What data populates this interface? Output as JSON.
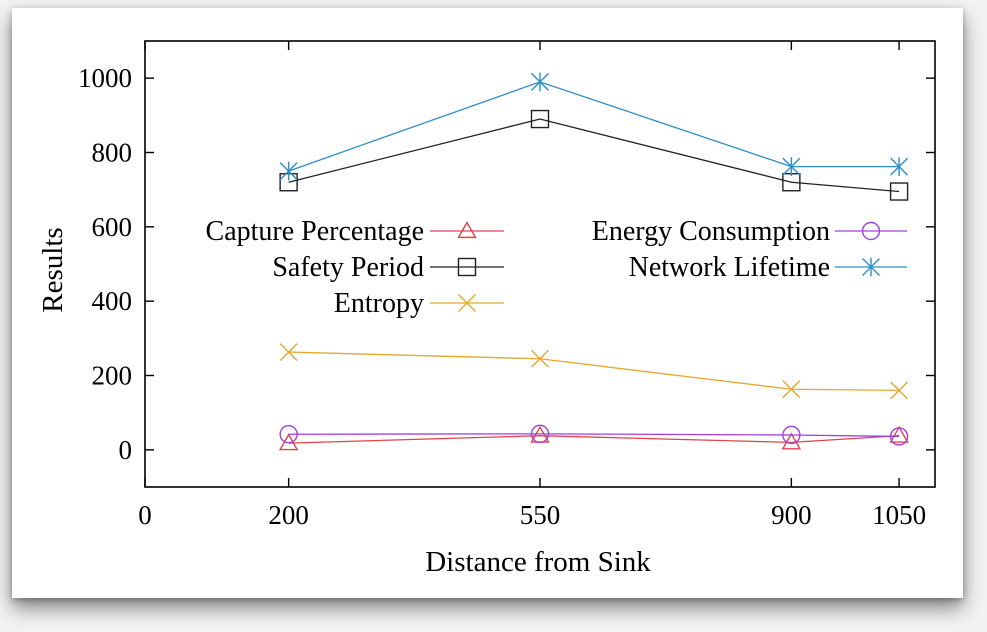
{
  "chart_data": {
    "type": "line",
    "title": "",
    "xlabel": "Distance from Sink",
    "ylabel": "Results",
    "xlim": [
      0,
      1100
    ],
    "ylim": [
      -100,
      1100
    ],
    "x_ticks": [
      0,
      200,
      550,
      900,
      1050
    ],
    "y_ticks": [
      0,
      200,
      400,
      600,
      800,
      1000
    ],
    "grid": false,
    "legend_position": "middle-left, two columns",
    "x": [
      200,
      550,
      900,
      1050
    ],
    "series": [
      {
        "name": "Capture Percentage",
        "marker": "triangle",
        "color": "#e0434a",
        "values": [
          18,
          38,
          20,
          38
        ]
      },
      {
        "name": "Safety Period",
        "marker": "square",
        "color": "#222222",
        "values": [
          720,
          890,
          720,
          695
        ]
      },
      {
        "name": "Entropy",
        "marker": "x",
        "color": "#e3a82f",
        "values": [
          263,
          245,
          163,
          160
        ]
      },
      {
        "name": "Energy Consumption",
        "marker": "circle",
        "color": "#a43fdb",
        "values": [
          42,
          43,
          40,
          36
        ]
      },
      {
        "name": "Network Lifetime",
        "marker": "star",
        "color": "#2e8ec7",
        "values": [
          750,
          990,
          762,
          762
        ]
      }
    ]
  }
}
